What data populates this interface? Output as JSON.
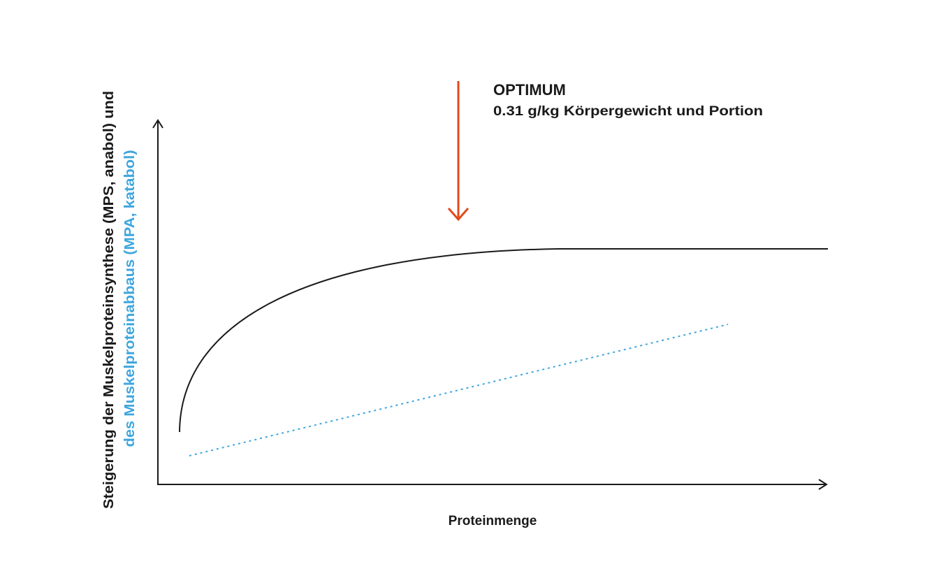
{
  "annotation": {
    "title": "OPTIMUM",
    "text": "0.31 g/kg Körpergewicht und Portion"
  },
  "axes": {
    "y_label": {
      "line1": "Steigerung der Muskelproteinsynthese (MPS, anabol) und",
      "line2": "des Muskelproteinabbaus (MPA, katabol)"
    },
    "x_label": "Proteinmenge"
  }
}
